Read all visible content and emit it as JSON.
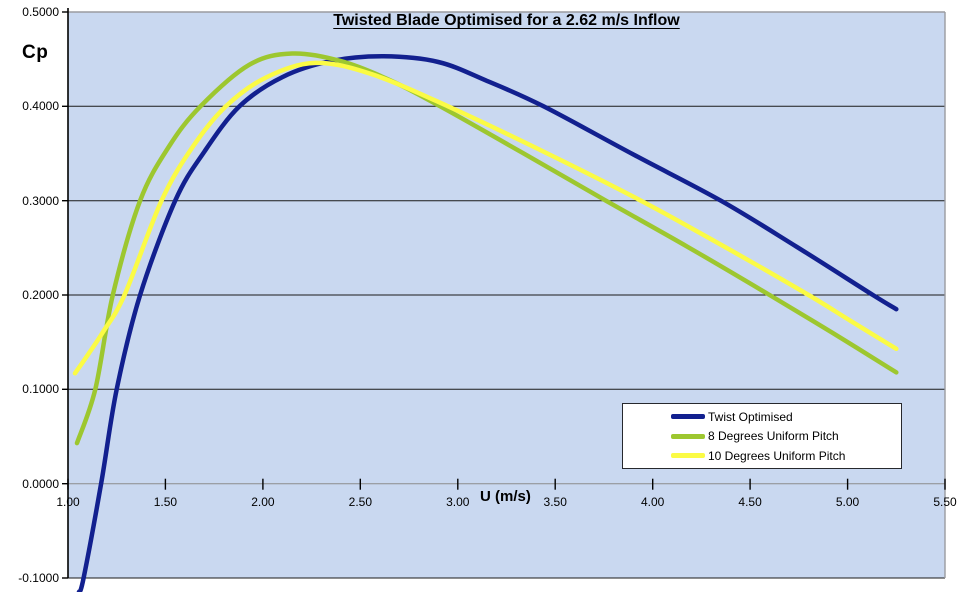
{
  "chart_data": {
    "type": "line",
    "title": "Twisted Blade Optimised for a 2.62 m/s Inflow",
    "xlabel": "U (m/s)",
    "ylabel": "Cp",
    "xlim": [
      1.0,
      5.5
    ],
    "ylim": [
      -0.1,
      0.5
    ],
    "grid": true,
    "legend_position": "inside-bottom-right",
    "x_ticks": [
      {
        "v": 1.0,
        "label": "1.00"
      },
      {
        "v": 1.5,
        "label": "1.50"
      },
      {
        "v": 2.0,
        "label": "2.00"
      },
      {
        "v": 2.5,
        "label": "2.50"
      },
      {
        "v": 3.0,
        "label": "3.00"
      },
      {
        "v": 3.5,
        "label": "3.50"
      },
      {
        "v": 4.0,
        "label": "4.00"
      },
      {
        "v": 4.5,
        "label": "4.50"
      },
      {
        "v": 5.0,
        "label": "5.00"
      },
      {
        "v": 5.5,
        "label": "5.50"
      }
    ],
    "y_ticks": [
      {
        "v": 0.5,
        "label": "0.5000"
      },
      {
        "v": 0.4,
        "label": "0.4000"
      },
      {
        "v": 0.3,
        "label": "0.3000"
      },
      {
        "v": 0.2,
        "label": "0.2000"
      },
      {
        "v": 0.1,
        "label": "0.1000"
      },
      {
        "v": 0.0,
        "label": "0.0000"
      },
      {
        "v": -0.1,
        "label": "-0.1000"
      }
    ],
    "series": [
      {
        "name": "Twist Optimised",
        "color": "#12208f",
        "points": [
          [
            1.056,
            -0.115
          ],
          [
            1.08,
            -0.1
          ],
          [
            1.17,
            0.0
          ],
          [
            1.25,
            0.1
          ],
          [
            1.37,
            0.2
          ],
          [
            1.55,
            0.3
          ],
          [
            1.7,
            0.352
          ],
          [
            1.88,
            0.4
          ],
          [
            2.1,
            0.431
          ],
          [
            2.35,
            0.448
          ],
          [
            2.62,
            0.453
          ],
          [
            2.9,
            0.447
          ],
          [
            3.15,
            0.427
          ],
          [
            3.44,
            0.4
          ],
          [
            3.9,
            0.349
          ],
          [
            4.35,
            0.3
          ],
          [
            4.74,
            0.251
          ],
          [
            5.13,
            0.2
          ],
          [
            5.25,
            0.185
          ]
        ]
      },
      {
        "name": "8 Degrees Uniform Pitch",
        "color": "#9dc72f",
        "points": [
          [
            1.046,
            0.043
          ],
          [
            1.14,
            0.1
          ],
          [
            1.23,
            0.2
          ],
          [
            1.37,
            0.3
          ],
          [
            1.52,
            0.358
          ],
          [
            1.68,
            0.4
          ],
          [
            1.93,
            0.444
          ],
          [
            2.15,
            0.456
          ],
          [
            2.4,
            0.448
          ],
          [
            2.66,
            0.427
          ],
          [
            2.91,
            0.4
          ],
          [
            3.33,
            0.351
          ],
          [
            3.76,
            0.3
          ],
          [
            4.18,
            0.251
          ],
          [
            4.6,
            0.2
          ],
          [
            4.93,
            0.159
          ],
          [
            5.25,
            0.118
          ]
        ]
      },
      {
        "name": "10 Degrees Uniform Pitch",
        "color": "#fbfb45",
        "points": [
          [
            1.036,
            0.117
          ],
          [
            1.11,
            0.139
          ],
          [
            1.18,
            0.161
          ],
          [
            1.29,
            0.2
          ],
          [
            1.48,
            0.3
          ],
          [
            1.64,
            0.357
          ],
          [
            1.81,
            0.4
          ],
          [
            2.02,
            0.431
          ],
          [
            2.27,
            0.446
          ],
          [
            2.56,
            0.434
          ],
          [
            2.95,
            0.4
          ],
          [
            3.44,
            0.352
          ],
          [
            3.94,
            0.3
          ],
          [
            4.37,
            0.251
          ],
          [
            4.8,
            0.2
          ],
          [
            5.02,
            0.172
          ],
          [
            5.25,
            0.143
          ]
        ]
      }
    ]
  },
  "colors": {
    "plot_bg": "#c9d8f0",
    "grid": "#1a1a1a",
    "zero_line": "#8c8c8c",
    "outer_border": "#9a9ba0",
    "axis": "#000000",
    "tick": "#000000"
  }
}
